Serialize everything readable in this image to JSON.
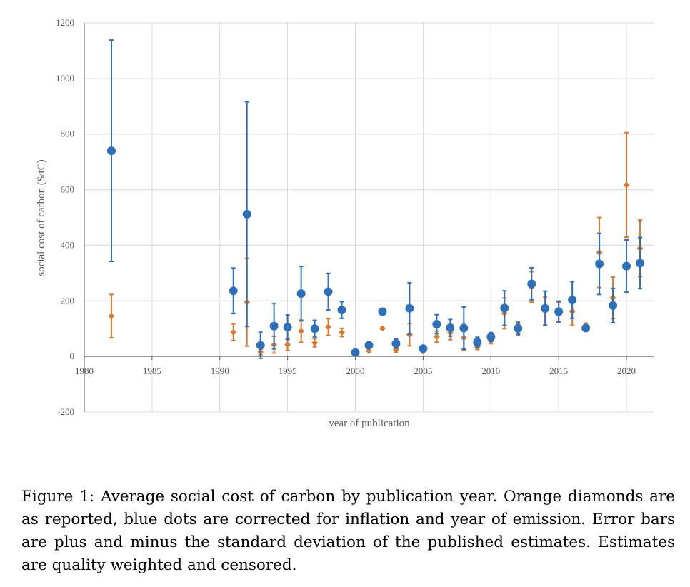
{
  "chart_data": {
    "type": "scatter",
    "xlabel": "year of publication",
    "ylabel": "social cost of carbon ($/tC)",
    "xlim": [
      1980,
      2022
    ],
    "ylim": [
      -200,
      1200
    ],
    "x_ticks": [
      "1980",
      "1985",
      "1990",
      "1995",
      "2000",
      "2005",
      "2010",
      "2015",
      "2020"
    ],
    "y_ticks": [
      "-200",
      "0",
      "200",
      "400",
      "600",
      "800",
      "1000",
      "1200"
    ],
    "grid": "vertical and horizontal",
    "series": [
      {
        "marker": "diamond",
        "color": "#d87a33",
        "points": [
          {
            "x": 1982,
            "y": 145,
            "lo": 67,
            "hi": 223
          },
          {
            "x": 1991,
            "y": 87,
            "lo": 57,
            "hi": 117
          },
          {
            "x": 1992,
            "y": 195,
            "lo": 37,
            "hi": 353
          },
          {
            "x": 1993,
            "y": 16,
            "lo": 6,
            "hi": 26
          },
          {
            "x": 1994,
            "y": 42,
            "lo": 12,
            "hi": 72
          },
          {
            "x": 1995,
            "y": 42,
            "lo": 22,
            "hi": 62
          },
          {
            "x": 1996,
            "y": 91,
            "lo": 51,
            "hi": 131
          },
          {
            "x": 1997,
            "y": 49,
            "lo": 34,
            "hi": 64
          },
          {
            "x": 1998,
            "y": 106,
            "lo": 76,
            "hi": 136
          },
          {
            "x": 1999,
            "y": 86,
            "lo": 71,
            "hi": 101
          },
          {
            "x": 2000,
            "y": 7
          },
          {
            "x": 2001,
            "y": 20
          },
          {
            "x": 2002,
            "y": 101
          },
          {
            "x": 2003,
            "y": 25,
            "lo": 15,
            "hi": 35
          },
          {
            "x": 2004,
            "y": 78,
            "lo": 38,
            "hi": 118
          },
          {
            "x": 2005,
            "y": 18
          },
          {
            "x": 2006,
            "y": 71,
            "lo": 51,
            "hi": 91
          },
          {
            "x": 2007,
            "y": 85,
            "lo": 60,
            "hi": 110
          },
          {
            "x": 2008,
            "y": 67,
            "lo": 22,
            "hi": 112
          },
          {
            "x": 2009,
            "y": 35,
            "lo": 25,
            "hi": 45
          },
          {
            "x": 2010,
            "y": 56,
            "lo": 46,
            "hi": 66
          },
          {
            "x": 2011,
            "y": 155,
            "lo": 100,
            "hi": 210
          },
          {
            "x": 2012,
            "y": 97,
            "lo": 77,
            "hi": 117
          },
          {
            "x": 2013,
            "y": 250,
            "lo": 195,
            "hi": 305
          },
          {
            "x": 2014,
            "y": 163,
            "lo": 113,
            "hi": 213
          },
          {
            "x": 2015,
            "y": 160,
            "lo": 125,
            "hi": 195
          },
          {
            "x": 2016,
            "y": 162,
            "lo": 112,
            "hi": 212
          },
          {
            "x": 2017,
            "y": 107,
            "lo": 94,
            "hi": 120
          },
          {
            "x": 2018,
            "y": 374,
            "lo": 248,
            "hi": 500
          },
          {
            "x": 2019,
            "y": 211,
            "lo": 136,
            "hi": 286
          },
          {
            "x": 2020,
            "y": 617,
            "lo": 429,
            "hi": 805
          },
          {
            "x": 2021,
            "y": 389,
            "lo": 287,
            "hi": 491
          }
        ]
      },
      {
        "marker": "circle",
        "color": "#2e6fba",
        "points": [
          {
            "x": 1982,
            "y": 740,
            "lo": 342,
            "hi": 1138
          },
          {
            "x": 1991,
            "y": 236,
            "lo": 154,
            "hi": 318
          },
          {
            "x": 1992,
            "y": 512,
            "lo": 108,
            "hi": 916
          },
          {
            "x": 1993,
            "y": 40,
            "lo": -7,
            "hi": 87
          },
          {
            "x": 1994,
            "y": 109,
            "lo": 27,
            "hi": 191
          },
          {
            "x": 1995,
            "y": 105,
            "lo": 61,
            "hi": 149
          },
          {
            "x": 1996,
            "y": 226,
            "lo": 128,
            "hi": 324
          },
          {
            "x": 1997,
            "y": 100,
            "lo": 70,
            "hi": 130
          },
          {
            "x": 1998,
            "y": 233,
            "lo": 167,
            "hi": 299
          },
          {
            "x": 1999,
            "y": 167,
            "lo": 137,
            "hi": 197
          },
          {
            "x": 2000,
            "y": 14
          },
          {
            "x": 2001,
            "y": 40
          },
          {
            "x": 2002,
            "y": 161
          },
          {
            "x": 2003,
            "y": 46,
            "lo": 30,
            "hi": 62
          },
          {
            "x": 2004,
            "y": 173,
            "lo": 81,
            "hi": 265
          },
          {
            "x": 2005,
            "y": 28
          },
          {
            "x": 2006,
            "y": 116,
            "lo": 82,
            "hi": 150
          },
          {
            "x": 2007,
            "y": 103,
            "lo": 73,
            "hi": 133
          },
          {
            "x": 2008,
            "y": 102,
            "lo": 26,
            "hi": 178
          },
          {
            "x": 2009,
            "y": 51,
            "lo": 33,
            "hi": 69
          },
          {
            "x": 2010,
            "y": 70,
            "lo": 54,
            "hi": 86
          },
          {
            "x": 2011,
            "y": 174,
            "lo": 112,
            "hi": 236
          },
          {
            "x": 2012,
            "y": 101,
            "lo": 79,
            "hi": 123
          },
          {
            "x": 2013,
            "y": 261,
            "lo": 203,
            "hi": 319
          },
          {
            "x": 2014,
            "y": 173,
            "lo": 111,
            "hi": 235
          },
          {
            "x": 2015,
            "y": 161,
            "lo": 123,
            "hi": 199
          },
          {
            "x": 2016,
            "y": 203,
            "lo": 137,
            "hi": 269
          },
          {
            "x": 2017,
            "y": 102,
            "lo": 94,
            "hi": 110
          },
          {
            "x": 2018,
            "y": 333,
            "lo": 223,
            "hi": 443
          },
          {
            "x": 2019,
            "y": 183,
            "lo": 121,
            "hi": 245
          },
          {
            "x": 2020,
            "y": 325,
            "lo": 231,
            "hi": 419
          },
          {
            "x": 2021,
            "y": 336,
            "lo": 244,
            "hi": 428
          }
        ]
      }
    ]
  },
  "caption": "Figure 1: Average social cost of carbon by publication year. Orange diamonds are as reported, blue dots are corrected for inflation and year of emission. Error bars are plus and minus the standard deviation of the published estimates. Estimates are quality weighted and censored."
}
